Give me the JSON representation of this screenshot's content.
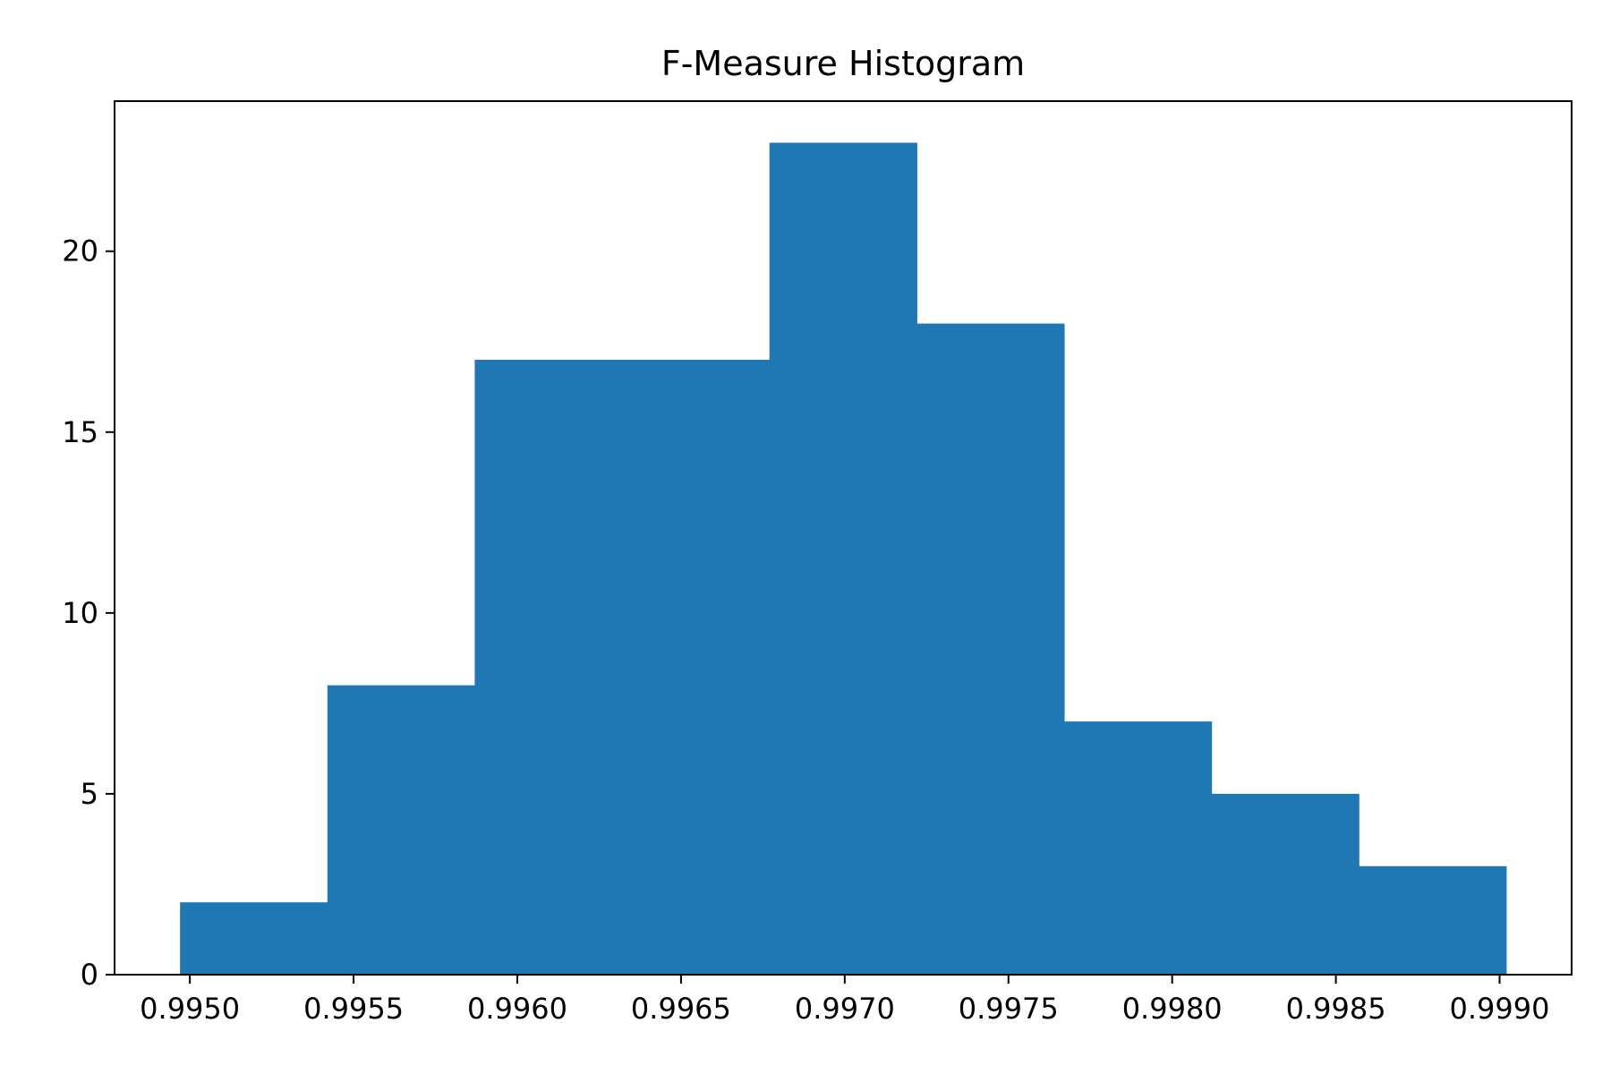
{
  "chart_data": {
    "type": "bar",
    "title": "F-Measure Histogram",
    "xlabel": "",
    "ylabel": "",
    "bin_edges": [
      0.99497,
      0.99542,
      0.99587,
      0.99632,
      0.99677,
      0.99722,
      0.99767,
      0.99812,
      0.99857,
      0.99902
    ],
    "values": [
      2,
      8,
      17,
      17,
      23,
      18,
      7,
      5,
      3
    ],
    "xlim": [
      0.99477,
      0.99922
    ],
    "ylim": [
      0,
      24.15
    ],
    "x_ticks": [
      0.995,
      0.9955,
      0.996,
      0.9965,
      0.997,
      0.9975,
      0.998,
      0.9985,
      0.999
    ],
    "x_tick_labels": [
      "0.9950",
      "0.9955",
      "0.9960",
      "0.9965",
      "0.9970",
      "0.9975",
      "0.9980",
      "0.9985",
      "0.9990"
    ],
    "y_ticks": [
      0,
      5,
      10,
      15,
      20
    ],
    "y_tick_labels": [
      "0",
      "5",
      "10",
      "15",
      "20"
    ],
    "bar_color": "#1f77b4",
    "grid": false,
    "legend": "none"
  }
}
